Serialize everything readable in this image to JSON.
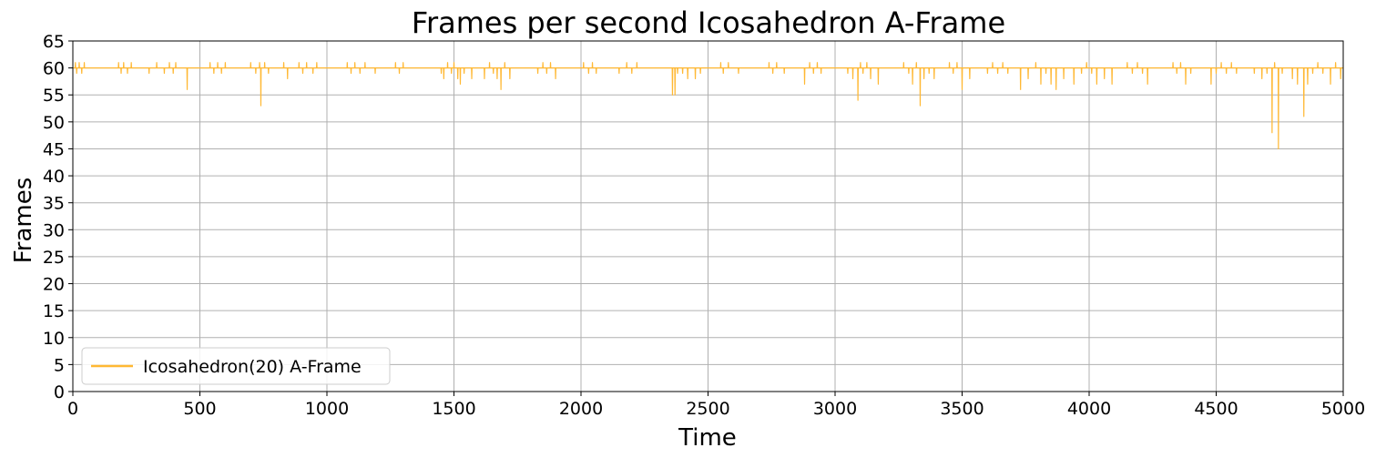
{
  "chart_data": {
    "type": "line",
    "title": "Frames per second Icosahedron A-Frame",
    "xlabel": "Time",
    "ylabel": "Frames",
    "xlim": [
      0,
      5000
    ],
    "ylim": [
      0,
      65
    ],
    "xticks": [
      "0",
      "500",
      "1000",
      "1500",
      "2000",
      "2500",
      "3000",
      "3500",
      "4000",
      "4500",
      "5000"
    ],
    "yticks": [
      "0",
      "5",
      "10",
      "15",
      "20",
      "25",
      "30",
      "35",
      "40",
      "45",
      "50",
      "55",
      "60",
      "65"
    ],
    "grid": true,
    "legend": {
      "location": "lower-left"
    },
    "series": [
      {
        "name": "Icosahedron(20) A-Frame",
        "color": "#ffb833",
        "baseline": 60,
        "x_range": [
          0,
          5000
        ],
        "values_note_excluded": true,
        "deviations": [
          {
            "x": 10,
            "y": 61
          },
          {
            "x": 15,
            "y": 59
          },
          {
            "x": 25,
            "y": 61
          },
          {
            "x": 35,
            "y": 59
          },
          {
            "x": 45,
            "y": 61
          },
          {
            "x": 180,
            "y": 61
          },
          {
            "x": 190,
            "y": 59
          },
          {
            "x": 200,
            "y": 61
          },
          {
            "x": 215,
            "y": 59
          },
          {
            "x": 230,
            "y": 61
          },
          {
            "x": 300,
            "y": 59
          },
          {
            "x": 330,
            "y": 61
          },
          {
            "x": 360,
            "y": 59
          },
          {
            "x": 380,
            "y": 61
          },
          {
            "x": 395,
            "y": 59
          },
          {
            "x": 405,
            "y": 61
          },
          {
            "x": 450,
            "y": 56
          },
          {
            "x": 540,
            "y": 61
          },
          {
            "x": 555,
            "y": 59
          },
          {
            "x": 570,
            "y": 61
          },
          {
            "x": 585,
            "y": 59
          },
          {
            "x": 600,
            "y": 61
          },
          {
            "x": 700,
            "y": 61
          },
          {
            "x": 720,
            "y": 59
          },
          {
            "x": 735,
            "y": 61
          },
          {
            "x": 740,
            "y": 53
          },
          {
            "x": 755,
            "y": 61
          },
          {
            "x": 770,
            "y": 59
          },
          {
            "x": 830,
            "y": 61
          },
          {
            "x": 845,
            "y": 58
          },
          {
            "x": 890,
            "y": 61
          },
          {
            "x": 905,
            "y": 59
          },
          {
            "x": 920,
            "y": 61
          },
          {
            "x": 945,
            "y": 59
          },
          {
            "x": 960,
            "y": 61
          },
          {
            "x": 1080,
            "y": 61
          },
          {
            "x": 1095,
            "y": 59
          },
          {
            "x": 1110,
            "y": 61
          },
          {
            "x": 1130,
            "y": 59
          },
          {
            "x": 1150,
            "y": 61
          },
          {
            "x": 1190,
            "y": 59
          },
          {
            "x": 1270,
            "y": 61
          },
          {
            "x": 1285,
            "y": 59
          },
          {
            "x": 1300,
            "y": 61
          },
          {
            "x": 1450,
            "y": 59
          },
          {
            "x": 1460,
            "y": 58
          },
          {
            "x": 1475,
            "y": 61
          },
          {
            "x": 1490,
            "y": 59
          },
          {
            "x": 1500,
            "y": 61
          },
          {
            "x": 1515,
            "y": 58
          },
          {
            "x": 1525,
            "y": 57
          },
          {
            "x": 1540,
            "y": 59
          },
          {
            "x": 1570,
            "y": 58
          },
          {
            "x": 1620,
            "y": 58
          },
          {
            "x": 1640,
            "y": 61
          },
          {
            "x": 1655,
            "y": 59
          },
          {
            "x": 1670,
            "y": 58
          },
          {
            "x": 1685,
            "y": 56
          },
          {
            "x": 1700,
            "y": 61
          },
          {
            "x": 1720,
            "y": 58
          },
          {
            "x": 1830,
            "y": 59
          },
          {
            "x": 1850,
            "y": 61
          },
          {
            "x": 1865,
            "y": 59
          },
          {
            "x": 1880,
            "y": 61
          },
          {
            "x": 1900,
            "y": 58
          },
          {
            "x": 2010,
            "y": 61
          },
          {
            "x": 2030,
            "y": 59
          },
          {
            "x": 2045,
            "y": 61
          },
          {
            "x": 2060,
            "y": 59
          },
          {
            "x": 2150,
            "y": 59
          },
          {
            "x": 2180,
            "y": 61
          },
          {
            "x": 2200,
            "y": 59
          },
          {
            "x": 2220,
            "y": 61
          },
          {
            "x": 2360,
            "y": 55
          },
          {
            "x": 2370,
            "y": 55
          },
          {
            "x": 2380,
            "y": 59
          },
          {
            "x": 2400,
            "y": 59
          },
          {
            "x": 2420,
            "y": 58
          },
          {
            "x": 2450,
            "y": 58
          },
          {
            "x": 2470,
            "y": 59
          },
          {
            "x": 2550,
            "y": 61
          },
          {
            "x": 2560,
            "y": 59
          },
          {
            "x": 2580,
            "y": 61
          },
          {
            "x": 2620,
            "y": 59
          },
          {
            "x": 2740,
            "y": 61
          },
          {
            "x": 2755,
            "y": 59
          },
          {
            "x": 2770,
            "y": 61
          },
          {
            "x": 2800,
            "y": 59
          },
          {
            "x": 2880,
            "y": 57
          },
          {
            "x": 2900,
            "y": 61
          },
          {
            "x": 2915,
            "y": 59
          },
          {
            "x": 2930,
            "y": 61
          },
          {
            "x": 2945,
            "y": 59
          },
          {
            "x": 3050,
            "y": 59
          },
          {
            "x": 3070,
            "y": 58
          },
          {
            "x": 3090,
            "y": 54
          },
          {
            "x": 3100,
            "y": 61
          },
          {
            "x": 3110,
            "y": 59
          },
          {
            "x": 3125,
            "y": 61
          },
          {
            "x": 3140,
            "y": 58
          },
          {
            "x": 3170,
            "y": 57
          },
          {
            "x": 3270,
            "y": 61
          },
          {
            "x": 3290,
            "y": 59
          },
          {
            "x": 3305,
            "y": 57
          },
          {
            "x": 3320,
            "y": 61
          },
          {
            "x": 3335,
            "y": 53
          },
          {
            "x": 3350,
            "y": 58
          },
          {
            "x": 3370,
            "y": 59
          },
          {
            "x": 3390,
            "y": 58
          },
          {
            "x": 3450,
            "y": 61
          },
          {
            "x": 3465,
            "y": 59
          },
          {
            "x": 3480,
            "y": 61
          },
          {
            "x": 3500,
            "y": 56
          },
          {
            "x": 3530,
            "y": 58
          },
          {
            "x": 3600,
            "y": 59
          },
          {
            "x": 3620,
            "y": 61
          },
          {
            "x": 3640,
            "y": 59
          },
          {
            "x": 3660,
            "y": 61
          },
          {
            "x": 3680,
            "y": 59
          },
          {
            "x": 3730,
            "y": 56
          },
          {
            "x": 3760,
            "y": 58
          },
          {
            "x": 3790,
            "y": 61
          },
          {
            "x": 3810,
            "y": 57
          },
          {
            "x": 3830,
            "y": 59
          },
          {
            "x": 3850,
            "y": 57
          },
          {
            "x": 3870,
            "y": 56
          },
          {
            "x": 3900,
            "y": 58
          },
          {
            "x": 3940,
            "y": 57
          },
          {
            "x": 3970,
            "y": 59
          },
          {
            "x": 3990,
            "y": 61
          },
          {
            "x": 4010,
            "y": 59
          },
          {
            "x": 4030,
            "y": 57
          },
          {
            "x": 4060,
            "y": 58
          },
          {
            "x": 4090,
            "y": 57
          },
          {
            "x": 4150,
            "y": 61
          },
          {
            "x": 4170,
            "y": 59
          },
          {
            "x": 4190,
            "y": 61
          },
          {
            "x": 4210,
            "y": 59
          },
          {
            "x": 4230,
            "y": 57
          },
          {
            "x": 4330,
            "y": 61
          },
          {
            "x": 4345,
            "y": 59
          },
          {
            "x": 4360,
            "y": 61
          },
          {
            "x": 4380,
            "y": 57
          },
          {
            "x": 4400,
            "y": 59
          },
          {
            "x": 4480,
            "y": 57
          },
          {
            "x": 4500,
            "y": 59
          },
          {
            "x": 4520,
            "y": 61
          },
          {
            "x": 4540,
            "y": 59
          },
          {
            "x": 4560,
            "y": 61
          },
          {
            "x": 4580,
            "y": 59
          },
          {
            "x": 4650,
            "y": 59
          },
          {
            "x": 4680,
            "y": 58
          },
          {
            "x": 4700,
            "y": 59
          },
          {
            "x": 4720,
            "y": 48
          },
          {
            "x": 4730,
            "y": 61
          },
          {
            "x": 4745,
            "y": 45
          },
          {
            "x": 4760,
            "y": 59
          },
          {
            "x": 4800,
            "y": 58
          },
          {
            "x": 4820,
            "y": 57
          },
          {
            "x": 4845,
            "y": 51
          },
          {
            "x": 4860,
            "y": 57
          },
          {
            "x": 4880,
            "y": 59
          },
          {
            "x": 4900,
            "y": 61
          },
          {
            "x": 4920,
            "y": 59
          },
          {
            "x": 4950,
            "y": 57
          },
          {
            "x": 4970,
            "y": 61
          },
          {
            "x": 4990,
            "y": 58
          }
        ]
      }
    ]
  }
}
